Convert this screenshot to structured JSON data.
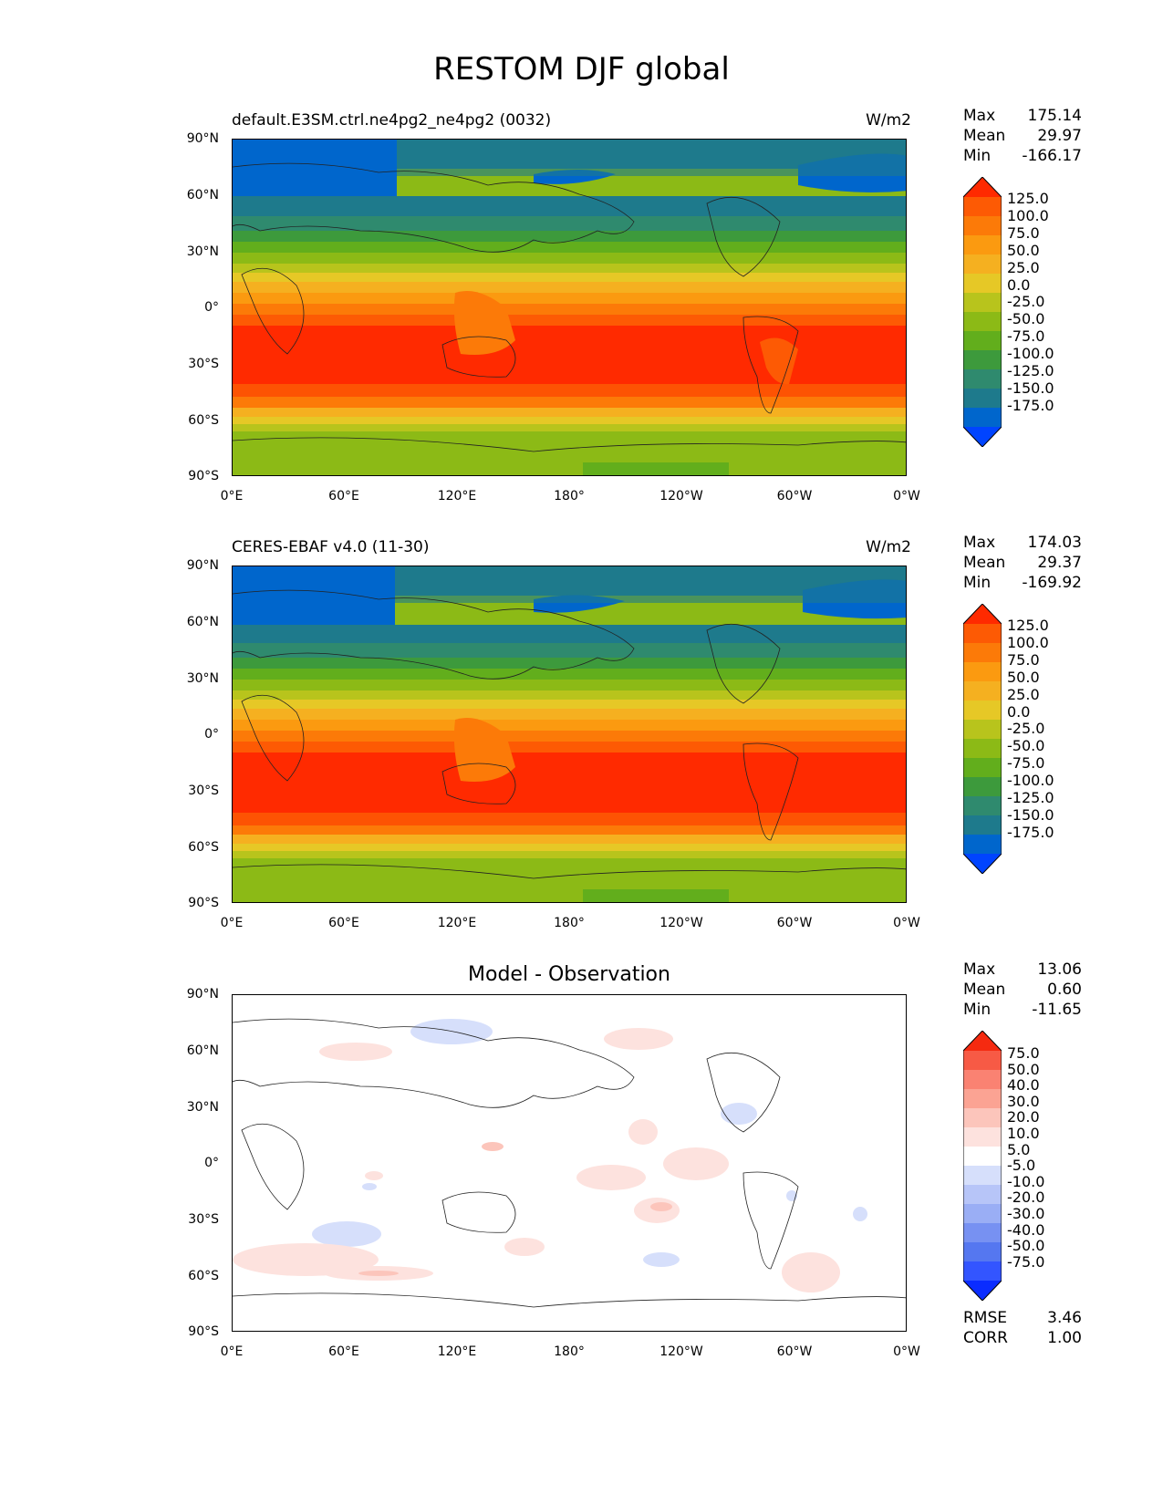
{
  "figure": {
    "title": "RESTOM DJF global"
  },
  "lat_ticks": [
    "90°N",
    "60°N",
    "30°N",
    "0°",
    "30°S",
    "60°S",
    "90°S"
  ],
  "lon_ticks": [
    "0°E",
    "60°E",
    "120°E",
    "180°",
    "120°W",
    "60°W",
    "0°W"
  ],
  "panels": [
    {
      "id": "model",
      "title": "default.E3SM.ctrl.ne4pg2_ne4pg2 (0032)",
      "units": "W/m2",
      "stats": {
        "max_label": "Max",
        "max": "175.14",
        "mean_label": "Mean",
        "mean": "29.97",
        "min_label": "Min",
        "min": "-166.17"
      },
      "colorbar_labels": [
        "125.0",
        "100.0",
        "75.0",
        "50.0",
        "25.0",
        "0.0",
        "-25.0",
        "-50.0",
        "-75.0",
        "-100.0",
        "-125.0",
        "-150.0",
        "-175.0"
      ]
    },
    {
      "id": "obs",
      "title": "CERES-EBAF v4.0 (11-30)",
      "units": "W/m2",
      "stats": {
        "max_label": "Max",
        "max": "174.03",
        "mean_label": "Mean",
        "mean": "29.37",
        "min_label": "Min",
        "min": "-169.92"
      },
      "colorbar_labels": [
        "125.0",
        "100.0",
        "75.0",
        "50.0",
        "25.0",
        "0.0",
        "-25.0",
        "-50.0",
        "-75.0",
        "-100.0",
        "-125.0",
        "-150.0",
        "-175.0"
      ]
    },
    {
      "id": "diff",
      "title": "Model - Observation",
      "stats": {
        "max_label": "Max",
        "max": "13.06",
        "mean_label": "Mean",
        "mean": "0.60",
        "min_label": "Min",
        "min": "-11.65"
      },
      "colorbar_labels": [
        "75.0",
        "50.0",
        "40.0",
        "30.0",
        "20.0",
        "10.0",
        "5.0",
        "-5.0",
        "-10.0",
        "-20.0",
        "-30.0",
        "-40.0",
        "-50.0",
        "-75.0"
      ],
      "metrics": {
        "rmse_label": "RMSE",
        "rmse": "3.46",
        "corr_label": "CORR",
        "corr": "1.00"
      }
    }
  ],
  "colors": {
    "field_scale": [
      "#0044ff",
      "#0066cc",
      "#1e7a8c",
      "#2f8a6e",
      "#3d9a3c",
      "#62ae1c",
      "#8cba16",
      "#b8c41c",
      "#e6c826",
      "#f5b020",
      "#fb9a10",
      "#fc7a08",
      "#fd5a04",
      "#ff2a00"
    ],
    "diff_scale": [
      "#0a2cff",
      "#3355ff",
      "#5577f0",
      "#7791f2",
      "#9aaef5",
      "#b7c5f8",
      "#d6dffb",
      "#ffffff",
      "#fde2de",
      "#fcc5bb",
      "#fba393",
      "#fa8272",
      "#f75a45",
      "#f52a10"
    ]
  }
}
